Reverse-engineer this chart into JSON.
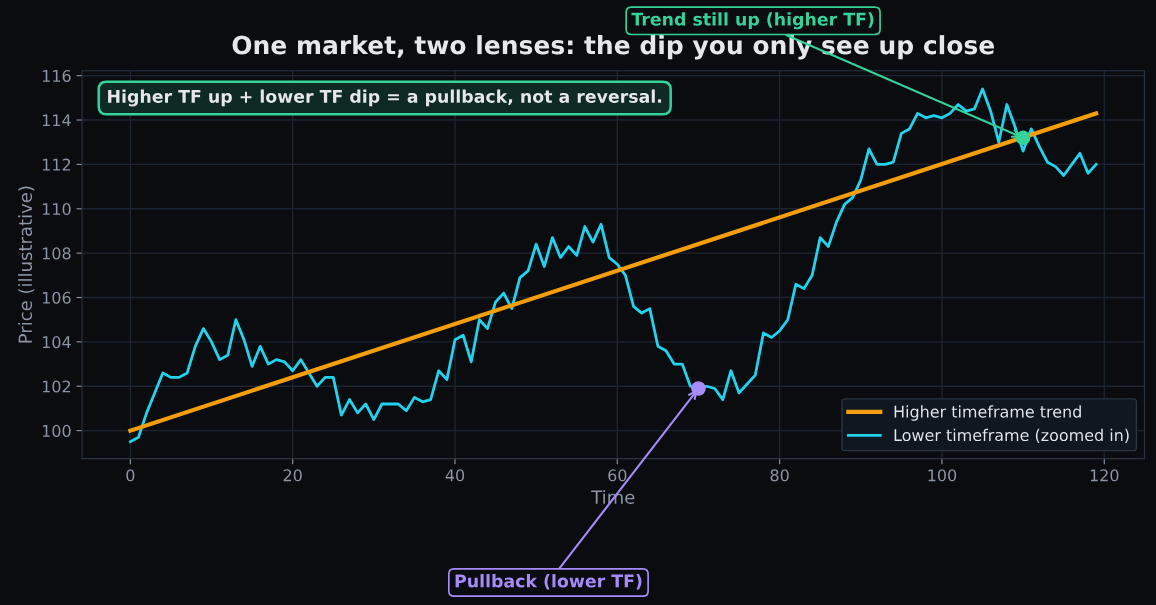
{
  "chart_data": {
    "type": "line",
    "title": "One market, two lenses: the dip you only see up close",
    "xlabel": "Time",
    "ylabel": "Price (illustrative)",
    "xlim": [
      -5.95,
      124.95
    ],
    "xticks": [
      0,
      20,
      40,
      60,
      80,
      100,
      120
    ],
    "ylim": [
      98.74,
      116.22
    ],
    "yticks": [
      100,
      102,
      104,
      106,
      108,
      110,
      112,
      114,
      116
    ],
    "grid": true,
    "legend": "lower right",
    "marker": "none",
    "line_style": "solid",
    "series": [
      {
        "name": "Higher timeframe trend",
        "color": "#f59e0b",
        "x": [
          0,
          119
        ],
        "values": [
          100.0,
          114.3
        ]
      },
      {
        "name": "Lower timeframe (zoomed in)",
        "color": "#22d3ee",
        "x": [
          0,
          1,
          2,
          3,
          4,
          5,
          6,
          7,
          8,
          9,
          10,
          11,
          12,
          13,
          14,
          15,
          16,
          17,
          18,
          19,
          20,
          21,
          22,
          23,
          24,
          25,
          26,
          27,
          28,
          29,
          30,
          31,
          32,
          33,
          34,
          35,
          36,
          37,
          38,
          39,
          40,
          41,
          42,
          43,
          44,
          45,
          46,
          47,
          48,
          49,
          50,
          51,
          52,
          53,
          54,
          55,
          56,
          57,
          58,
          59,
          60,
          61,
          62,
          63,
          64,
          65,
          66,
          67,
          68,
          69,
          70,
          71,
          72,
          73,
          74,
          75,
          76,
          77,
          78,
          79,
          80,
          81,
          82,
          83,
          84,
          85,
          86,
          87,
          88,
          89,
          90,
          91,
          92,
          93,
          94,
          95,
          96,
          97,
          98,
          99,
          100,
          101,
          102,
          103,
          104,
          105,
          106,
          107,
          108,
          109,
          110,
          111,
          112,
          113,
          114,
          115,
          116,
          117,
          118,
          119
        ],
        "values": [
          99.5,
          99.7,
          100.8,
          101.7,
          102.6,
          102.4,
          102.4,
          102.6,
          103.8,
          104.6,
          104.0,
          103.2,
          103.4,
          105.0,
          104.1,
          102.9,
          103.8,
          103.0,
          103.2,
          103.1,
          102.7,
          103.2,
          102.6,
          102.0,
          102.4,
          102.4,
          100.7,
          101.4,
          100.8,
          101.2,
          100.5,
          101.2,
          101.2,
          101.2,
          100.9,
          101.5,
          101.3,
          101.4,
          102.7,
          102.3,
          104.1,
          104.3,
          103.1,
          105.0,
          104.6,
          105.8,
          106.2,
          105.5,
          106.9,
          107.2,
          108.4,
          107.4,
          108.7,
          107.8,
          108.3,
          107.9,
          109.2,
          108.5,
          109.3,
          107.8,
          107.5,
          107.0,
          105.6,
          105.3,
          105.5,
          103.8,
          103.6,
          103.0,
          103.0,
          102.0,
          101.9,
          102.0,
          101.9,
          101.4,
          102.7,
          101.7,
          102.1,
          102.5,
          104.4,
          104.2,
          104.5,
          105.0,
          106.6,
          106.4,
          107.0,
          108.7,
          108.3,
          109.4,
          110.2,
          110.5,
          111.3,
          112.7,
          112.0,
          112.0,
          112.1,
          113.4,
          113.6,
          114.3,
          114.1,
          114.2,
          114.1,
          114.3,
          114.7,
          114.4,
          114.5,
          115.4,
          114.4,
          113.0,
          114.7,
          113.7,
          112.6,
          113.6,
          112.8,
          112.1,
          111.9,
          111.5,
          112.0,
          112.5,
          111.6,
          112.0
        ]
      },
      {
        "type": "scatter",
        "marker": "circle",
        "color": "#a78bfa",
        "x": [
          70
        ],
        "values": [
          101.9
        ]
      },
      {
        "type": "scatter",
        "marker": "circle",
        "color": "#34d399",
        "x": [
          110
        ],
        "values": [
          113.2
        ]
      }
    ],
    "annotations": [
      "Higher TF up + lower TF dip = a pullback, not a reversal.",
      {
        "text": "Pullback (lower TF)",
        "x": 70,
        "y": 101.9
      },
      {
        "text": "Trend still up (higher TF)",
        "x": 110,
        "y": 113.2
      }
    ]
  }
}
